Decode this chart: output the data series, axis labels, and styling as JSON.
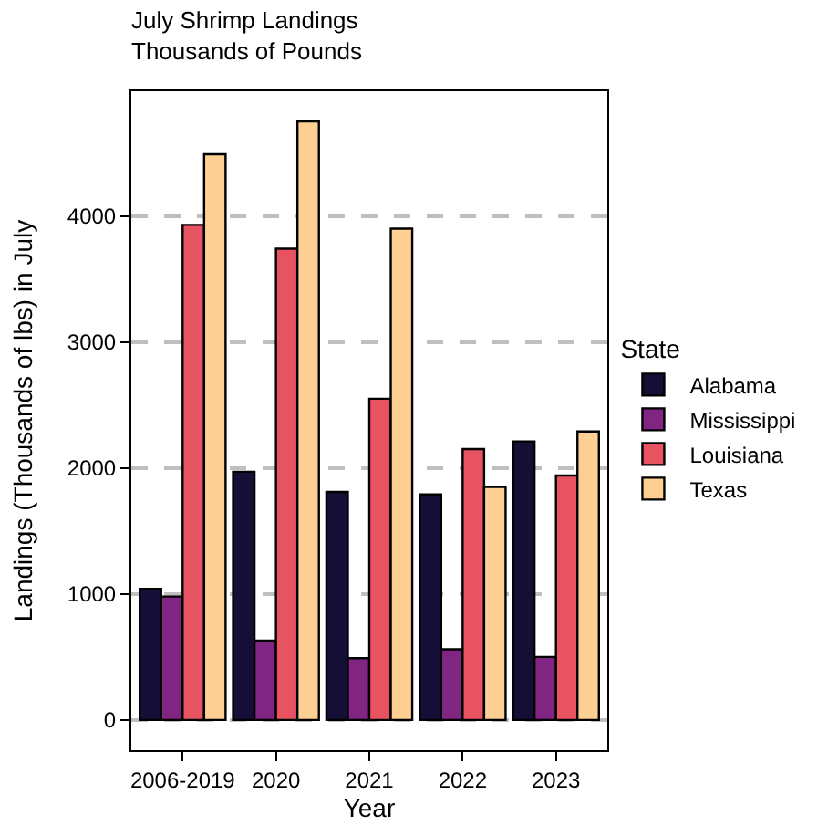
{
  "chart_data": {
    "type": "bar",
    "title": "July Shrimp Landings",
    "subtitle": "Thousands of Pounds",
    "xlabel": "Year",
    "ylabel": "Landings (Thousands of lbs) in July",
    "legend_title": "State",
    "categories": [
      "2006-2019",
      "2020",
      "2021",
      "2022",
      "2023"
    ],
    "series": [
      {
        "name": "Alabama",
        "color": "#150e37",
        "values": [
          1040,
          1970,
          1810,
          1790,
          2210
        ]
      },
      {
        "name": "Mississippi",
        "color": "#802582",
        "values": [
          980,
          630,
          490,
          560,
          500
        ]
      },
      {
        "name": "Louisiana",
        "color": "#e85362",
        "values": [
          3930,
          3740,
          2550,
          2150,
          1940
        ]
      },
      {
        "name": "Texas",
        "color": "#fecf92",
        "values": [
          4490,
          4750,
          3900,
          1850,
          2290
        ]
      }
    ],
    "ylim": [
      -240,
      4990
    ],
    "yticks": [
      0,
      1000,
      2000,
      3000,
      4000
    ],
    "grid": "y",
    "legend": "right"
  }
}
